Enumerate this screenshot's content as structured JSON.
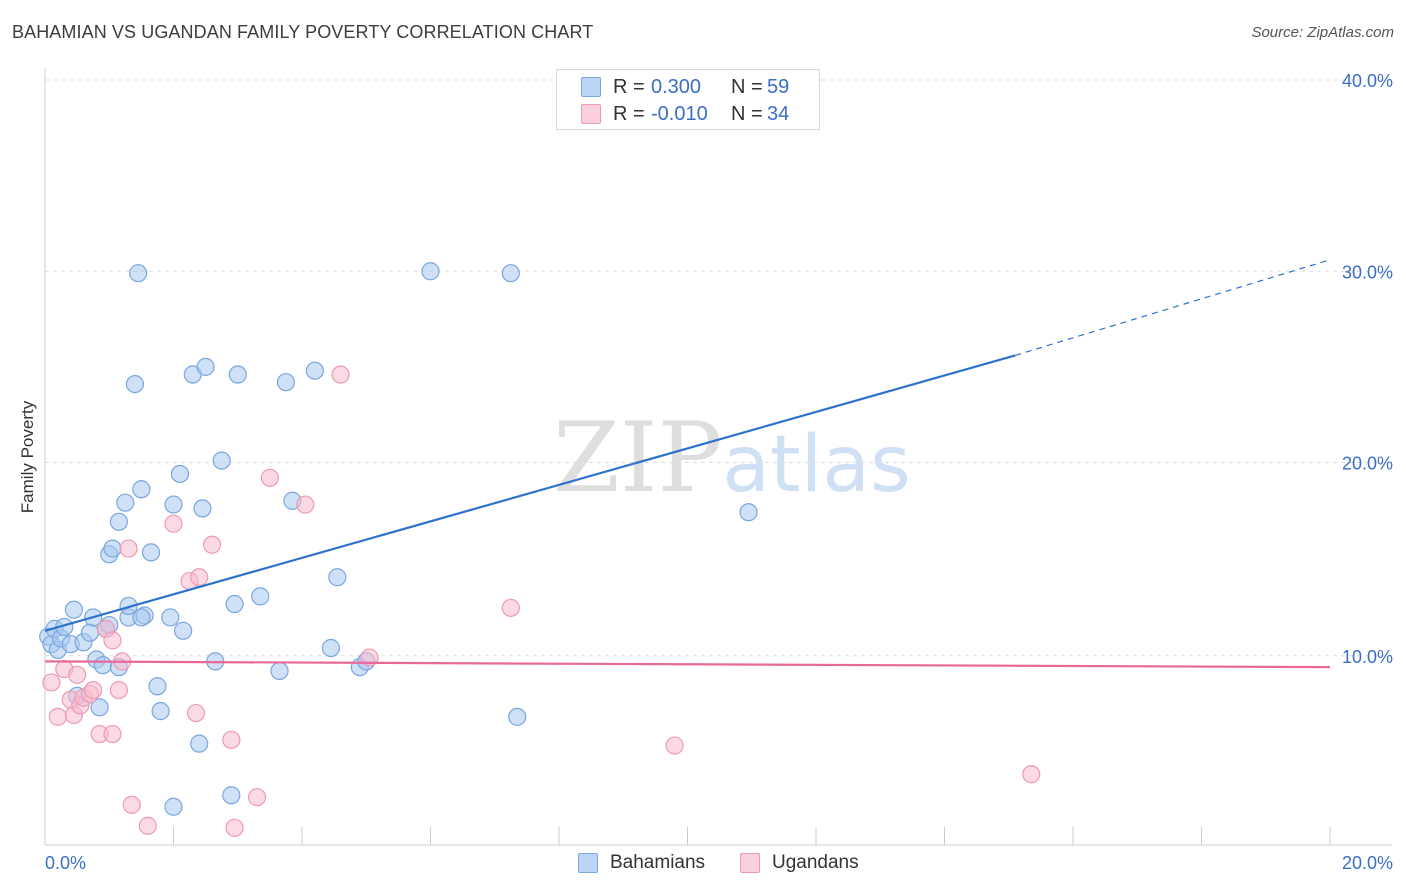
{
  "title": "BAHAMIAN VS UGANDAN FAMILY POVERTY CORRELATION CHART",
  "source": "Source: ZipAtlas.com",
  "watermark": {
    "zip": "ZIP",
    "atlas": "atlas"
  },
  "legend": {
    "rows": [
      {
        "r_label": "R =",
        "r_value": "0.300",
        "n_label": "N =",
        "n_value": "59"
      },
      {
        "r_label": "R =",
        "r_value": "-0.010",
        "n_label": "N =",
        "n_value": "34"
      }
    ]
  },
  "bottom_legend": {
    "series1": "Bahamians",
    "series2": "Ugandans"
  },
  "colors": {
    "blue_fill": "#a8c8f0",
    "blue_stroke": "#7aa6de",
    "blue_line": "#2f72cc",
    "pink_fill": "#f7bccd",
    "pink_stroke": "#ee9ab4",
    "pink_line": "#e8689a",
    "grid": "#dddddd",
    "tick_text": "#3a6fc4"
  },
  "chart_data": {
    "type": "scatter",
    "title": "BAHAMIAN VS UGANDAN FAMILY POVERTY CORRELATION CHART",
    "xlabel": "",
    "ylabel": "Family Poverty",
    "xlim": [
      0,
      20
    ],
    "ylim": [
      0,
      40
    ],
    "x_tick_labels": [
      "0.0%",
      "20.0%"
    ],
    "y_ticks": [
      10,
      20,
      30,
      40
    ],
    "y_tick_labels": [
      "10.0%",
      "20.0%",
      "30.0%",
      "40.0%"
    ],
    "series": [
      {
        "name": "Bahamians",
        "R": 0.3,
        "N": 59,
        "trend": {
          "x0": 0,
          "y0": 11.2,
          "x1": 15.1,
          "y1": 25.6,
          "dashed_to_x": 20,
          "dashed_to_y": 30.6
        },
        "points": [
          [
            0.05,
            10.9
          ],
          [
            0.1,
            10.5
          ],
          [
            0.15,
            11.3
          ],
          [
            0.2,
            10.2
          ],
          [
            0.25,
            10.8
          ],
          [
            0.3,
            11.4
          ],
          [
            0.4,
            10.5
          ],
          [
            0.45,
            12.3
          ],
          [
            0.6,
            10.6
          ],
          [
            0.7,
            11.1
          ],
          [
            0.75,
            11.9
          ],
          [
            0.8,
            9.7
          ],
          [
            0.85,
            7.2
          ],
          [
            0.9,
            9.4
          ],
          [
            0.95,
            11.3
          ],
          [
            1.0,
            11.5
          ],
          [
            1.0,
            15.2
          ],
          [
            1.05,
            15.5
          ],
          [
            1.15,
            9.3
          ],
          [
            1.15,
            16.9
          ],
          [
            1.25,
            17.9
          ],
          [
            1.3,
            11.9
          ],
          [
            1.3,
            12.5
          ],
          [
            1.4,
            24.1
          ],
          [
            1.45,
            29.9
          ],
          [
            1.5,
            18.6
          ],
          [
            1.55,
            12.0
          ],
          [
            1.65,
            15.3
          ],
          [
            1.75,
            8.3
          ],
          [
            1.8,
            7.0
          ],
          [
            1.95,
            11.9
          ],
          [
            2.0,
            17.8
          ],
          [
            2.0,
            2.0
          ],
          [
            2.1,
            19.4
          ],
          [
            2.15,
            11.2
          ],
          [
            2.3,
            24.6
          ],
          [
            2.4,
            5.3
          ],
          [
            2.45,
            17.6
          ],
          [
            2.5,
            25.0
          ],
          [
            2.65,
            9.6
          ],
          [
            2.75,
            20.1
          ],
          [
            2.9,
            2.6
          ],
          [
            2.95,
            12.6
          ],
          [
            3.0,
            24.6
          ],
          [
            3.35,
            13.0
          ],
          [
            3.65,
            9.1
          ],
          [
            3.75,
            24.2
          ],
          [
            3.85,
            18.0
          ],
          [
            4.2,
            24.8
          ],
          [
            4.45,
            10.3
          ],
          [
            4.55,
            14.0
          ],
          [
            4.9,
            9.3
          ],
          [
            5.0,
            9.6
          ],
          [
            6.0,
            30.0
          ],
          [
            7.25,
            29.9
          ],
          [
            7.35,
            6.7
          ],
          [
            10.95,
            17.4
          ],
          [
            0.5,
            7.8
          ],
          [
            1.5,
            11.9
          ]
        ]
      },
      {
        "name": "Ugandans",
        "R": -0.01,
        "N": 34,
        "trend": {
          "x0": 0,
          "y0": 9.6,
          "x1": 20,
          "y1": 9.3
        },
        "points": [
          [
            0.1,
            8.5
          ],
          [
            0.2,
            6.7
          ],
          [
            0.3,
            9.2
          ],
          [
            0.4,
            7.6
          ],
          [
            0.45,
            6.8
          ],
          [
            0.5,
            8.9
          ],
          [
            0.55,
            7.3
          ],
          [
            0.6,
            7.7
          ],
          [
            0.7,
            7.9
          ],
          [
            0.75,
            8.1
          ],
          [
            0.85,
            5.8
          ],
          [
            0.95,
            11.3
          ],
          [
            1.05,
            10.7
          ],
          [
            1.05,
            5.8
          ],
          [
            1.15,
            8.1
          ],
          [
            1.2,
            9.6
          ],
          [
            1.3,
            15.5
          ],
          [
            1.35,
            2.1
          ],
          [
            1.6,
            1.0
          ],
          [
            2.0,
            16.8
          ],
          [
            2.25,
            13.8
          ],
          [
            2.35,
            6.9
          ],
          [
            2.4,
            14.0
          ],
          [
            2.6,
            15.7
          ],
          [
            2.9,
            5.5
          ],
          [
            2.95,
            0.9
          ],
          [
            3.3,
            2.5
          ],
          [
            3.5,
            19.2
          ],
          [
            4.05,
            17.8
          ],
          [
            4.6,
            24.6
          ],
          [
            5.05,
            9.8
          ],
          [
            7.25,
            12.4
          ],
          [
            9.8,
            5.2
          ],
          [
            15.35,
            3.7
          ]
        ]
      }
    ]
  }
}
